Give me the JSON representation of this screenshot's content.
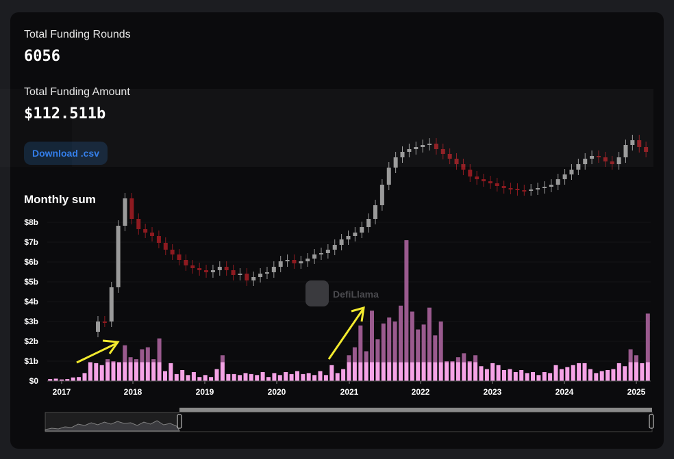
{
  "stats": {
    "rounds_label": "Total Funding Rounds",
    "rounds_value": "6056",
    "amount_label": "Total Funding Amount",
    "amount_value": "$112.511b"
  },
  "download": {
    "label": "Download .csv"
  },
  "section": {
    "title": "Monthly sum"
  },
  "watermark": "DefiLlama",
  "colors": {
    "bar": "#f5a3e6",
    "bar_top": "#9a5a8e",
    "candle_up": "#9a9a9a",
    "candle_down": "#8e1a20",
    "arrow": "#f2ea2e",
    "background": "#0b0b0d"
  },
  "chart_data": {
    "type": "bar",
    "y_ticks": [
      "$0",
      "$1b",
      "$2b",
      "$3b",
      "$4b",
      "$5b",
      "$6b",
      "$7b",
      "$8b"
    ],
    "ylim": [
      0,
      8.5
    ],
    "x_ticks": [
      "2017",
      "2018",
      "2019",
      "2020",
      "2021",
      "2022",
      "2023",
      "2024",
      "2025"
    ],
    "series": [
      {
        "values": [
          0.1,
          0.12,
          0.08,
          0.1,
          0.18,
          0.2,
          0.4,
          0.95,
          0.9,
          0.8,
          1.1,
          1.0,
          0.95,
          1.8,
          1.2,
          1.1,
          1.6,
          1.7,
          1.1,
          2.15,
          0.5,
          0.9,
          0.35,
          0.55,
          0.3,
          0.45,
          0.2,
          0.3,
          0.2,
          0.6,
          1.3,
          0.35,
          0.35,
          0.3,
          0.4,
          0.35,
          0.3,
          0.45,
          0.2,
          0.4,
          0.3,
          0.45,
          0.35,
          0.5,
          0.35,
          0.4,
          0.3,
          0.5,
          0.3,
          0.8,
          0.4,
          0.6,
          1.3,
          1.7,
          2.8,
          1.5,
          3.55,
          2.1,
          2.9,
          3.2,
          3.0,
          3.8,
          7.1,
          3.5,
          2.6,
          2.85,
          3.7,
          2.3,
          3.0,
          1.0,
          1.0,
          1.2,
          1.4,
          1.0,
          1.3,
          0.75,
          0.6,
          0.9,
          0.8,
          0.55,
          0.6,
          0.45,
          0.55,
          0.4,
          0.45,
          0.3,
          0.45,
          0.4,
          0.8,
          0.6,
          0.7,
          0.8,
          0.9,
          0.9,
          0.6,
          0.4,
          0.5,
          0.55,
          0.6,
          0.9,
          0.75,
          1.6,
          1.3,
          0.9,
          3.4
        ]
      }
    ]
  }
}
